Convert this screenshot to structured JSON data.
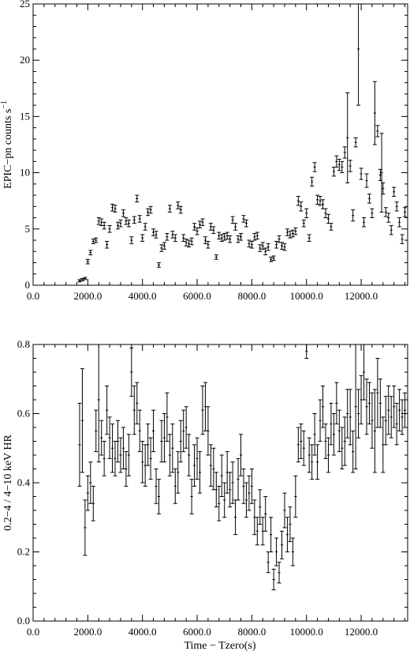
{
  "chart_data": [
    {
      "type": "scatter",
      "title": "",
      "xlabel": "",
      "ylabel": "EPIC−pn counts s",
      "ylabel_superscript": "−1",
      "xlim": [
        0,
        13700
      ],
      "ylim": [
        0,
        25
      ],
      "xticks": [
        0,
        2000,
        4000,
        6000,
        8000,
        10000,
        12000
      ],
      "xtick_labels": [
        "0.0",
        "2000.0",
        "4000.0",
        "6000.0",
        "8000.0",
        "10000.0",
        "12000.0"
      ],
      "yticks": [
        0,
        5,
        10,
        15,
        20,
        25
      ],
      "ytick_labels": [
        "0",
        "5",
        "10",
        "15",
        "20",
        "25"
      ],
      "grid": false,
      "legend": "none",
      "error_bars": true,
      "points": [
        [
          1700,
          0.4,
          0.1
        ],
        [
          1800,
          0.5,
          0.1
        ],
        [
          1900,
          0.6,
          0.1
        ],
        [
          2000,
          2.1,
          0.2
        ],
        [
          2100,
          2.9,
          0.2
        ],
        [
          2200,
          3.9,
          0.2
        ],
        [
          2300,
          4.0,
          0.2
        ],
        [
          2400,
          5.7,
          0.3
        ],
        [
          2500,
          5.6,
          0.3
        ],
        [
          2600,
          5.3,
          0.3
        ],
        [
          2700,
          3.6,
          0.3
        ],
        [
          2800,
          5.0,
          0.3
        ],
        [
          2900,
          6.9,
          0.3
        ],
        [
          3000,
          6.8,
          0.3
        ],
        [
          3100,
          5.3,
          0.3
        ],
        [
          3200,
          5.5,
          0.3
        ],
        [
          3300,
          6.4,
          0.3
        ],
        [
          3400,
          5.7,
          0.3
        ],
        [
          3500,
          5.5,
          0.3
        ],
        [
          3600,
          4.0,
          0.3
        ],
        [
          3700,
          5.8,
          0.3
        ],
        [
          3800,
          7.7,
          0.3
        ],
        [
          3900,
          5.9,
          0.3
        ],
        [
          4000,
          4.2,
          0.3
        ],
        [
          4100,
          5.2,
          0.3
        ],
        [
          4200,
          6.5,
          0.3
        ],
        [
          4300,
          6.7,
          0.3
        ],
        [
          4400,
          4.7,
          0.3
        ],
        [
          4500,
          4.5,
          0.3
        ],
        [
          4600,
          1.8,
          0.2
        ],
        [
          4700,
          3.3,
          0.3
        ],
        [
          4800,
          3.5,
          0.3
        ],
        [
          4900,
          4.3,
          0.3
        ],
        [
          5000,
          6.8,
          0.3
        ],
        [
          5100,
          4.5,
          0.3
        ],
        [
          5200,
          4.2,
          0.3
        ],
        [
          5300,
          7.1,
          0.3
        ],
        [
          5400,
          6.7,
          0.3
        ],
        [
          5500,
          4.2,
          0.3
        ],
        [
          5600,
          3.8,
          0.3
        ],
        [
          5700,
          3.7,
          0.3
        ],
        [
          5800,
          3.9,
          0.3
        ],
        [
          5900,
          5.2,
          0.3
        ],
        [
          6000,
          4.8,
          0.3
        ],
        [
          6100,
          5.4,
          0.3
        ],
        [
          6200,
          5.6,
          0.3
        ],
        [
          6300,
          4.0,
          0.3
        ],
        [
          6400,
          3.6,
          0.3
        ],
        [
          6500,
          5.2,
          0.3
        ],
        [
          6600,
          4.9,
          0.3
        ],
        [
          6700,
          2.5,
          0.2
        ],
        [
          6800,
          4.4,
          0.3
        ],
        [
          6900,
          4.2,
          0.3
        ],
        [
          7000,
          4.3,
          0.3
        ],
        [
          7100,
          4.4,
          0.3
        ],
        [
          7200,
          4.1,
          0.3
        ],
        [
          7300,
          5.8,
          0.3
        ],
        [
          7400,
          5.2,
          0.3
        ],
        [
          7500,
          4.1,
          0.3
        ],
        [
          7600,
          4.3,
          0.3
        ],
        [
          7700,
          5.9,
          0.3
        ],
        [
          7800,
          5.5,
          0.3
        ],
        [
          7900,
          3.7,
          0.3
        ],
        [
          8000,
          3.6,
          0.3
        ],
        [
          8100,
          4.3,
          0.3
        ],
        [
          8200,
          4.4,
          0.3
        ],
        [
          8300,
          3.3,
          0.3
        ],
        [
          8400,
          3.5,
          0.3
        ],
        [
          8500,
          3.0,
          0.3
        ],
        [
          8600,
          3.4,
          0.3
        ],
        [
          8700,
          2.3,
          0.2
        ],
        [
          8800,
          2.4,
          0.2
        ],
        [
          8900,
          3.6,
          0.3
        ],
        [
          9000,
          4.1,
          0.3
        ],
        [
          9100,
          3.5,
          0.3
        ],
        [
          9200,
          3.4,
          0.3
        ],
        [
          9300,
          4.7,
          0.3
        ],
        [
          9400,
          4.5,
          0.3
        ],
        [
          9500,
          4.6,
          0.3
        ],
        [
          9600,
          4.8,
          0.3
        ],
        [
          9700,
          7.5,
          0.4
        ],
        [
          9800,
          7.0,
          0.4
        ],
        [
          9900,
          5.5,
          0.3
        ],
        [
          10000,
          6.4,
          0.4
        ],
        [
          10100,
          4.2,
          0.3
        ],
        [
          10200,
          9.2,
          0.4
        ],
        [
          10300,
          10.5,
          0.4
        ],
        [
          10400,
          7.6,
          0.4
        ],
        [
          10500,
          7.5,
          0.4
        ],
        [
          10600,
          7.2,
          0.4
        ],
        [
          10700,
          6.4,
          0.4
        ],
        [
          10800,
          5.9,
          0.4
        ],
        [
          10900,
          5.2,
          0.3
        ],
        [
          11000,
          10.1,
          0.4
        ],
        [
          11100,
          11.0,
          0.5
        ],
        [
          11200,
          10.7,
          0.5
        ],
        [
          11300,
          10.5,
          0.5
        ],
        [
          11400,
          11.8,
          0.5
        ],
        [
          11500,
          13.1,
          4.0
        ],
        [
          11600,
          10.6,
          0.5
        ],
        [
          11700,
          6.2,
          0.5
        ],
        [
          11800,
          12.7,
          0.4
        ],
        [
          11900,
          21.0,
          5.0
        ],
        [
          12000,
          9.9,
          0.5
        ],
        [
          12100,
          5.6,
          0.4
        ],
        [
          12200,
          9.3,
          0.6
        ],
        [
          12300,
          7.7,
          0.4
        ],
        [
          12400,
          6.4,
          0.4
        ],
        [
          12500,
          15.3,
          2.8
        ],
        [
          12600,
          13.7,
          0.5
        ],
        [
          12700,
          9.8,
          0.5
        ],
        [
          12750,
          10.0,
          3.5
        ],
        [
          12800,
          8.6,
          0.5
        ],
        [
          12900,
          6.5,
          0.4
        ],
        [
          13000,
          6.0,
          0.4
        ],
        [
          13100,
          4.9,
          0.4
        ],
        [
          13200,
          8.3,
          0.4
        ],
        [
          13300,
          7.0,
          0.4
        ],
        [
          13400,
          5.6,
          0.4
        ],
        [
          13500,
          4.1,
          0.4
        ],
        [
          13600,
          6.5,
          0.4
        ]
      ]
    },
    {
      "type": "scatter",
      "title": "",
      "xlabel": "Time − Tzero(s)",
      "ylabel": "0.2−4 / 4−10 keV HR",
      "xlim": [
        0,
        13700
      ],
      "ylim": [
        0,
        0.8
      ],
      "xticks": [
        0,
        2000,
        4000,
        6000,
        8000,
        10000,
        12000
      ],
      "xtick_labels": [
        "0.0",
        "2000.0",
        "4000.0",
        "6000.0",
        "8000.0",
        "10000.0",
        "12000.0"
      ],
      "yticks": [
        0,
        0.2,
        0.4,
        0.6,
        0.8
      ],
      "ytick_labels": [
        "0.0",
        "0.2",
        "0.4",
        "0.6",
        "0.8"
      ],
      "grid": false,
      "legend": "none",
      "error_bars": true,
      "points": [
        [
          1700,
          0.51,
          0.12
        ],
        [
          1800,
          0.58,
          0.15
        ],
        [
          1900,
          0.27,
          0.08
        ],
        [
          2000,
          0.37,
          0.05
        ],
        [
          2100,
          0.4,
          0.06
        ],
        [
          2200,
          0.34,
          0.05
        ],
        [
          2300,
          0.55,
          0.06
        ],
        [
          2400,
          0.64,
          0.18
        ],
        [
          2500,
          0.53,
          0.05
        ],
        [
          2600,
          0.47,
          0.05
        ],
        [
          2700,
          0.61,
          0.07
        ],
        [
          2800,
          0.53,
          0.06
        ],
        [
          2900,
          0.5,
          0.07
        ],
        [
          3000,
          0.47,
          0.05
        ],
        [
          3100,
          0.52,
          0.06
        ],
        [
          3200,
          0.48,
          0.05
        ],
        [
          3300,
          0.5,
          0.06
        ],
        [
          3400,
          0.44,
          0.05
        ],
        [
          3500,
          0.48,
          0.06
        ],
        [
          3600,
          0.72,
          0.07
        ],
        [
          3700,
          0.61,
          0.07
        ],
        [
          3800,
          0.63,
          0.06
        ],
        [
          3900,
          0.55,
          0.06
        ],
        [
          4000,
          0.46,
          0.06
        ],
        [
          4100,
          0.45,
          0.06
        ],
        [
          4200,
          0.51,
          0.06
        ],
        [
          4300,
          0.47,
          0.06
        ],
        [
          4400,
          0.55,
          0.06
        ],
        [
          4500,
          0.39,
          0.05
        ],
        [
          4600,
          0.36,
          0.05
        ],
        [
          4700,
          0.52,
          0.06
        ],
        [
          4800,
          0.53,
          0.07
        ],
        [
          4900,
          0.59,
          0.07
        ],
        [
          5000,
          0.48,
          0.06
        ],
        [
          5100,
          0.5,
          0.07
        ],
        [
          5200,
          0.39,
          0.05
        ],
        [
          5300,
          0.43,
          0.06
        ],
        [
          5400,
          0.52,
          0.06
        ],
        [
          5500,
          0.55,
          0.06
        ],
        [
          5600,
          0.56,
          0.06
        ],
        [
          5700,
          0.48,
          0.06
        ],
        [
          5800,
          0.36,
          0.05
        ],
        [
          5900,
          0.45,
          0.06
        ],
        [
          6000,
          0.47,
          0.06
        ],
        [
          6100,
          0.43,
          0.06
        ],
        [
          6200,
          0.61,
          0.07
        ],
        [
          6300,
          0.62,
          0.07
        ],
        [
          6400,
          0.55,
          0.07
        ],
        [
          6500,
          0.45,
          0.06
        ],
        [
          6600,
          0.44,
          0.06
        ],
        [
          6700,
          0.38,
          0.05
        ],
        [
          6800,
          0.34,
          0.05
        ],
        [
          6900,
          0.42,
          0.06
        ],
        [
          7000,
          0.35,
          0.05
        ],
        [
          7100,
          0.43,
          0.06
        ],
        [
          7200,
          0.38,
          0.05
        ],
        [
          7300,
          0.4,
          0.06
        ],
        [
          7400,
          0.3,
          0.05
        ],
        [
          7500,
          0.41,
          0.06
        ],
        [
          7600,
          0.48,
          0.06
        ],
        [
          7700,
          0.39,
          0.05
        ],
        [
          7800,
          0.35,
          0.05
        ],
        [
          7900,
          0.37,
          0.05
        ],
        [
          8000,
          0.39,
          0.05
        ],
        [
          8100,
          0.3,
          0.05
        ],
        [
          8200,
          0.26,
          0.04
        ],
        [
          8300,
          0.33,
          0.05
        ],
        [
          8400,
          0.26,
          0.04
        ],
        [
          8500,
          0.31,
          0.05
        ],
        [
          8600,
          0.17,
          0.03
        ],
        [
          8700,
          0.25,
          0.05
        ],
        [
          8800,
          0.12,
          0.03
        ],
        [
          8900,
          0.2,
          0.04
        ],
        [
          9000,
          0.14,
          0.03
        ],
        [
          9100,
          0.22,
          0.04
        ],
        [
          9200,
          0.32,
          0.05
        ],
        [
          9300,
          0.25,
          0.05
        ],
        [
          9400,
          0.28,
          0.05
        ],
        [
          9500,
          0.2,
          0.04
        ],
        [
          9600,
          0.36,
          0.06
        ],
        [
          9700,
          0.51,
          0.05
        ],
        [
          9800,
          0.52,
          0.05
        ],
        [
          9900,
          0.5,
          0.05
        ],
        [
          10000,
          0.78,
          0.02
        ],
        [
          10100,
          0.48,
          0.05
        ],
        [
          10200,
          0.46,
          0.05
        ],
        [
          10300,
          0.54,
          0.06
        ],
        [
          10400,
          0.46,
          0.05
        ],
        [
          10500,
          0.58,
          0.06
        ],
        [
          10600,
          0.62,
          0.06
        ],
        [
          10700,
          0.52,
          0.05
        ],
        [
          10800,
          0.48,
          0.05
        ],
        [
          10900,
          0.57,
          0.06
        ],
        [
          11000,
          0.54,
          0.06
        ],
        [
          11100,
          0.63,
          0.06
        ],
        [
          11200,
          0.55,
          0.06
        ],
        [
          11300,
          0.5,
          0.06
        ],
        [
          11400,
          0.52,
          0.07
        ],
        [
          11500,
          0.6,
          0.07
        ],
        [
          11600,
          0.59,
          0.08
        ],
        [
          11700,
          0.49,
          0.06
        ],
        [
          11800,
          0.62,
          0.18
        ],
        [
          11900,
          0.6,
          0.07
        ],
        [
          12000,
          0.64,
          0.07
        ],
        [
          12100,
          0.72,
          0.08
        ],
        [
          12200,
          0.62,
          0.08
        ],
        [
          12300,
          0.63,
          0.06
        ],
        [
          12400,
          0.58,
          0.08
        ],
        [
          12500,
          0.55,
          0.12
        ],
        [
          12600,
          0.66,
          0.1
        ],
        [
          12700,
          0.63,
          0.07
        ],
        [
          12800,
          0.51,
          0.08
        ],
        [
          12900,
          0.58,
          0.07
        ],
        [
          13000,
          0.61,
          0.07
        ],
        [
          13100,
          0.59,
          0.06
        ],
        [
          13200,
          0.62,
          0.06
        ],
        [
          13300,
          0.57,
          0.06
        ],
        [
          13400,
          0.61,
          0.06
        ],
        [
          13500,
          0.59,
          0.05
        ],
        [
          13600,
          0.61,
          0.05
        ]
      ]
    }
  ]
}
